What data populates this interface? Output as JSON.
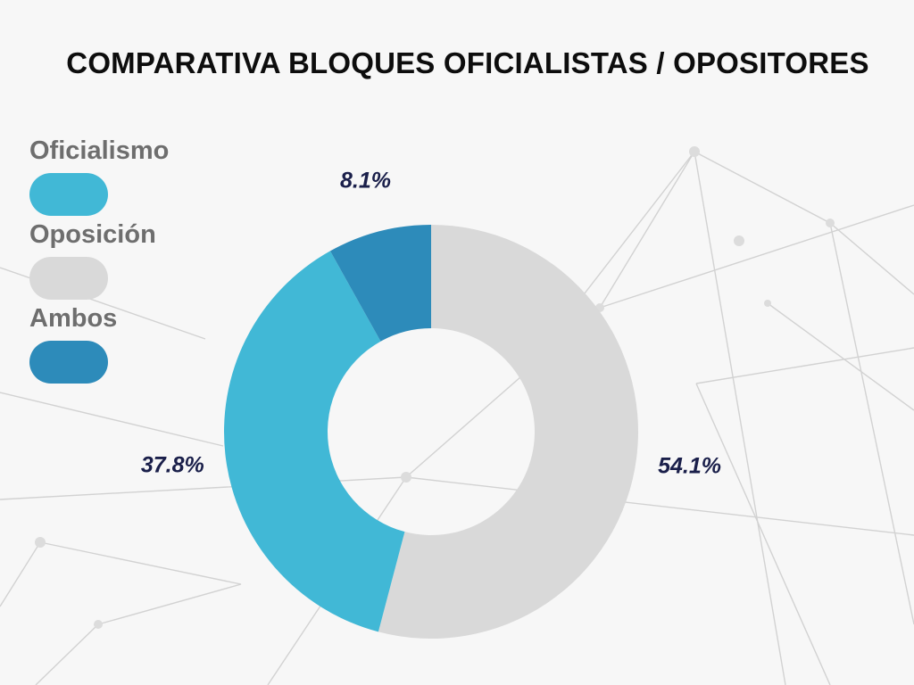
{
  "chart_data": {
    "type": "pie",
    "title": "COMPARATIVA BLOQUES OFICIALISTAS / OPOSITORES",
    "categories": [
      "Oposición",
      "Oficialismo",
      "Ambos"
    ],
    "values": [
      54.1,
      37.8,
      8.1
    ],
    "data_labels": [
      "54.1%",
      "37.8%",
      "8.1%"
    ],
    "colors": [
      "#d9d9d9",
      "#41b8d6",
      "#2d8bba"
    ],
    "legend": [
      {
        "label": "Oficialismo",
        "color": "#41b8d6"
      },
      {
        "label": "Oposición",
        "color": "#d9d9d9"
      },
      {
        "label": "Ambos",
        "color": "#2d8bba"
      }
    ],
    "legend_position": "left",
    "donut": true
  }
}
